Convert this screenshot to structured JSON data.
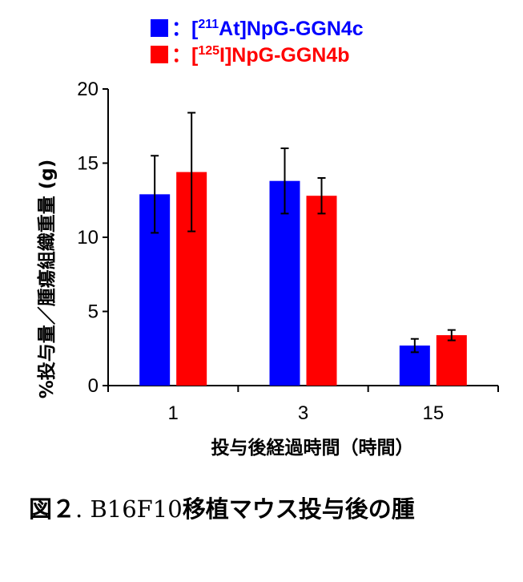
{
  "chart_data": {
    "type": "bar",
    "categories": [
      "1",
      "3",
      "15"
    ],
    "series": [
      {
        "name_parts": {
          "open": "[",
          "sup": "211",
          "rest": "At]NpG-GGN4c"
        },
        "color": "#0000ff",
        "values": [
          12.9,
          13.8,
          2.7
        ],
        "errors": [
          2.6,
          2.2,
          0.45
        ]
      },
      {
        "name_parts": {
          "open": "[",
          "sup": "125",
          "rest": "I]NpG-GGN4b"
        },
        "color": "#ff0000",
        "values": [
          14.4,
          12.8,
          3.4
        ],
        "errors": [
          4.0,
          1.2,
          0.35
        ]
      }
    ],
    "legend_prefix": "：",
    "legend_position": "top-center",
    "xlabel": "投与後経過時間（時間）",
    "ylabel": "%投与量／腫瘍組織重量 (g)",
    "ylim": [
      0,
      20
    ],
    "yticks": [
      0,
      5,
      10,
      15,
      20
    ],
    "grid": false
  },
  "caption": {
    "prefix": "図２",
    "separator": ". ",
    "code": "B16F10",
    "text": "移植マウス投与後の腫"
  }
}
